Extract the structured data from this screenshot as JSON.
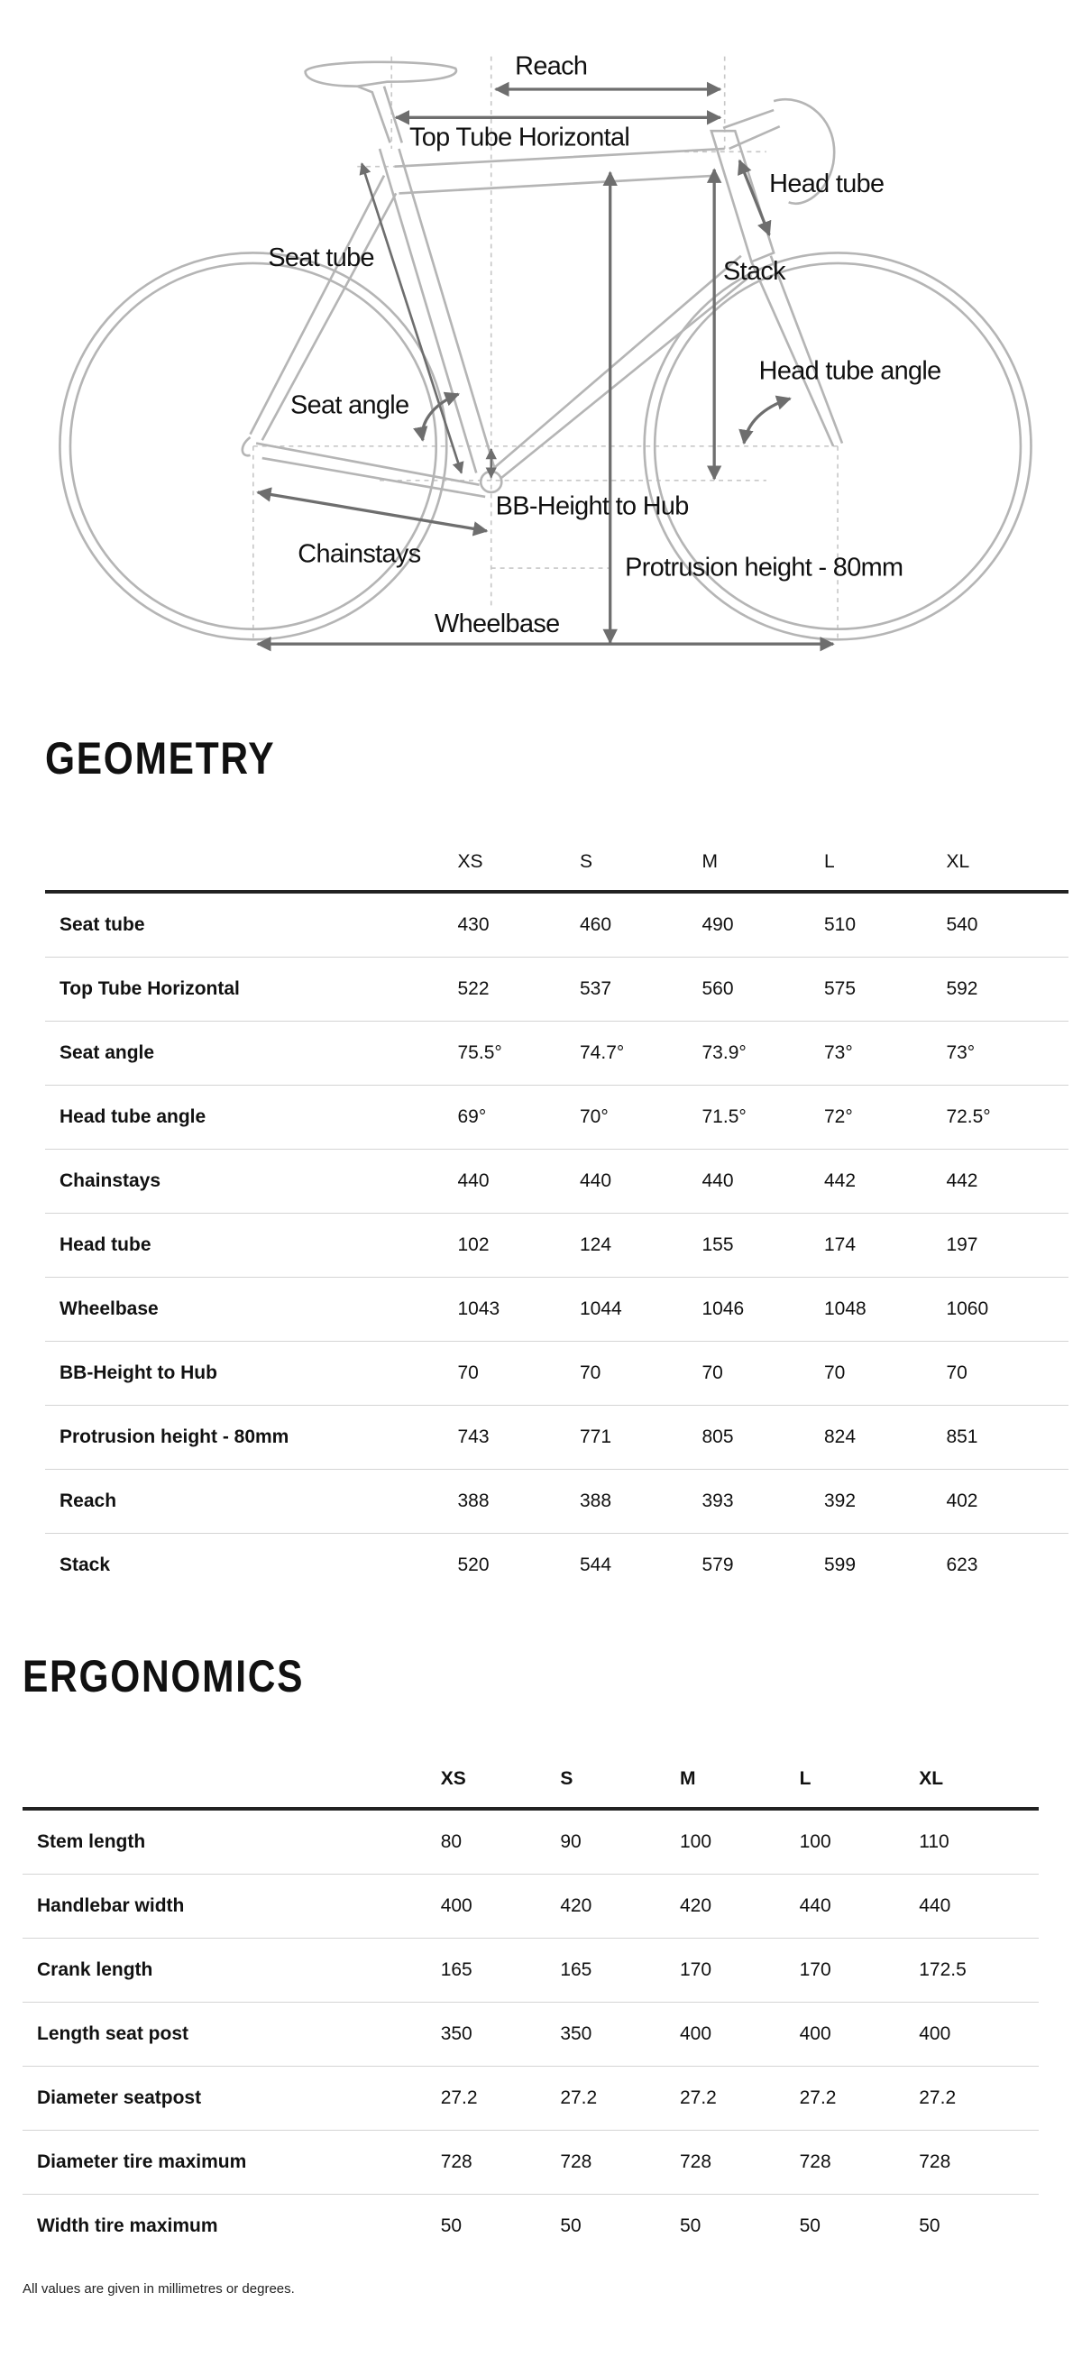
{
  "diagram": {
    "labels": {
      "reach": "Reach",
      "top_tube": "Top Tube Horizontal",
      "head_tube": "Head tube",
      "seat_tube": "Seat tube",
      "stack": "Stack",
      "head_tube_angle": "Head tube angle",
      "seat_angle": "Seat angle",
      "bb_height": "BB-Height to Hub",
      "chainstays": "Chainstays",
      "protrusion": "Protrusion height - 80mm",
      "wheelbase": "Wheelbase"
    },
    "colors": {
      "frame": "#b5b5b5",
      "arrow": "#6e6e6e",
      "guide": "#c8c8c8"
    }
  },
  "geometry": {
    "title": "GEOMETRY",
    "sizes": [
      "XS",
      "S",
      "M",
      "L",
      "XL"
    ],
    "rows": [
      {
        "label": "Seat tube",
        "values": [
          "430",
          "460",
          "490",
          "510",
          "540"
        ]
      },
      {
        "label": "Top Tube Horizontal",
        "values": [
          "522",
          "537",
          "560",
          "575",
          "592"
        ]
      },
      {
        "label": "Seat angle",
        "values": [
          "75.5°",
          "74.7°",
          "73.9°",
          "73°",
          "73°"
        ]
      },
      {
        "label": "Head tube angle",
        "values": [
          "69°",
          "70°",
          "71.5°",
          "72°",
          "72.5°"
        ]
      },
      {
        "label": "Chainstays",
        "values": [
          "440",
          "440",
          "440",
          "442",
          "442"
        ]
      },
      {
        "label": "Head tube",
        "values": [
          "102",
          "124",
          "155",
          "174",
          "197"
        ]
      },
      {
        "label": "Wheelbase",
        "values": [
          "1043",
          "1044",
          "1046",
          "1048",
          "1060"
        ]
      },
      {
        "label": "BB-Height to Hub",
        "values": [
          "70",
          "70",
          "70",
          "70",
          "70"
        ]
      },
      {
        "label": "Protrusion height - 80mm",
        "values": [
          "743",
          "771",
          "805",
          "824",
          "851"
        ]
      },
      {
        "label": "Reach",
        "values": [
          "388",
          "388",
          "393",
          "392",
          "402"
        ]
      },
      {
        "label": "Stack",
        "values": [
          "520",
          "544",
          "579",
          "599",
          "623"
        ]
      }
    ]
  },
  "ergonomics": {
    "title": "ERGONOMICS",
    "sizes": [
      "XS",
      "S",
      "M",
      "L",
      "XL"
    ],
    "rows": [
      {
        "label": "Stem length",
        "values": [
          "80",
          "90",
          "100",
          "100",
          "110"
        ]
      },
      {
        "label": "Handlebar width",
        "values": [
          "400",
          "420",
          "420",
          "440",
          "440"
        ]
      },
      {
        "label": "Crank length",
        "values": [
          "165",
          "165",
          "170",
          "170",
          "172.5"
        ]
      },
      {
        "label": "Length seat post",
        "values": [
          "350",
          "350",
          "400",
          "400",
          "400"
        ]
      },
      {
        "label": "Diameter seatpost",
        "values": [
          "27.2",
          "27.2",
          "27.2",
          "27.2",
          "27.2"
        ]
      },
      {
        "label": "Diameter tire maximum",
        "values": [
          "728",
          "728",
          "728",
          "728",
          "728"
        ]
      },
      {
        "label": "Width tire maximum",
        "values": [
          "50",
          "50",
          "50",
          "50",
          "50"
        ]
      }
    ]
  },
  "footnote": "All values are given in millimetres or degrees."
}
